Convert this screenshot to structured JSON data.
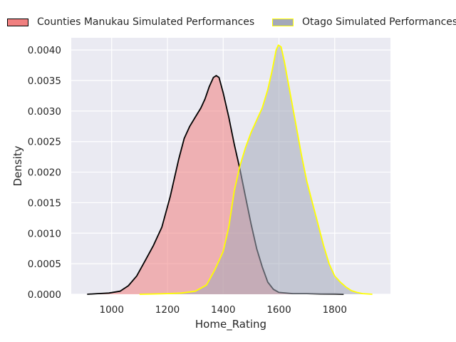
{
  "chart_data": {
    "type": "area",
    "xlabel": "Home_Rating",
    "ylabel": "Density",
    "xlim": [
      855,
      2000
    ],
    "ylim": [
      0,
      0.0042
    ],
    "grid": true,
    "legend_position": "top",
    "x_ticks": [
      "1000",
      "1200",
      "1400",
      "1600",
      "1800"
    ],
    "y_ticks": [
      "0.0000",
      "0.0005",
      "0.0010",
      "0.0015",
      "0.0020",
      "0.0025",
      "0.0030",
      "0.0035",
      "0.0040"
    ],
    "series": [
      {
        "name": "Counties Manukau Simulated Performances",
        "fill_color": "#f08080",
        "line_color": "#000000",
        "points": [
          [
            912,
            0
          ],
          [
            950,
            1e-05
          ],
          [
            990,
            2e-05
          ],
          [
            1030,
            5e-05
          ],
          [
            1060,
            0.00014
          ],
          [
            1090,
            0.0003
          ],
          [
            1120,
            0.00055
          ],
          [
            1150,
            0.0008
          ],
          [
            1180,
            0.0011
          ],
          [
            1210,
            0.0016
          ],
          [
            1240,
            0.0022
          ],
          [
            1260,
            0.00255
          ],
          [
            1280,
            0.00275
          ],
          [
            1300,
            0.0029
          ],
          [
            1320,
            0.00305
          ],
          [
            1335,
            0.0032
          ],
          [
            1350,
            0.0034
          ],
          [
            1365,
            0.00355
          ],
          [
            1375,
            0.00358
          ],
          [
            1385,
            0.00355
          ],
          [
            1400,
            0.0033
          ],
          [
            1420,
            0.0029
          ],
          [
            1440,
            0.00245
          ],
          [
            1460,
            0.00205
          ],
          [
            1480,
            0.0016
          ],
          [
            1500,
            0.00115
          ],
          [
            1520,
            0.00075
          ],
          [
            1540,
            0.00045
          ],
          [
            1560,
            0.0002
          ],
          [
            1580,
            8e-05
          ],
          [
            1600,
            3e-05
          ],
          [
            1650,
            1e-05
          ],
          [
            1700,
            1e-05
          ],
          [
            1750,
            5e-06
          ],
          [
            1800,
            3e-06
          ],
          [
            1832,
            0
          ]
        ]
      },
      {
        "name": "Otago Simulated Performances",
        "fill_color": "#a4a9b9",
        "line_color": "#ffff00",
        "points": [
          [
            1100,
            0
          ],
          [
            1150,
            5e-06
          ],
          [
            1200,
            1e-05
          ],
          [
            1250,
            2e-05
          ],
          [
            1300,
            5e-05
          ],
          [
            1340,
            0.00015
          ],
          [
            1370,
            0.0004
          ],
          [
            1400,
            0.0007
          ],
          [
            1420,
            0.0011
          ],
          [
            1440,
            0.0017
          ],
          [
            1460,
            0.0021
          ],
          [
            1480,
            0.0024
          ],
          [
            1500,
            0.00265
          ],
          [
            1520,
            0.00285
          ],
          [
            1540,
            0.00305
          ],
          [
            1560,
            0.00335
          ],
          [
            1575,
            0.00365
          ],
          [
            1590,
            0.004
          ],
          [
            1598,
            0.00408
          ],
          [
            1608,
            0.00405
          ],
          [
            1620,
            0.0038
          ],
          [
            1640,
            0.0033
          ],
          [
            1660,
            0.0028
          ],
          [
            1680,
            0.0023
          ],
          [
            1700,
            0.00185
          ],
          [
            1720,
            0.0015
          ],
          [
            1740,
            0.00115
          ],
          [
            1760,
            0.0008
          ],
          [
            1780,
            0.0005
          ],
          [
            1800,
            0.0003
          ],
          [
            1820,
            0.0002
          ],
          [
            1840,
            0.00012
          ],
          [
            1860,
            6e-05
          ],
          [
            1880,
            3e-05
          ],
          [
            1900,
            1e-05
          ],
          [
            1935,
            0
          ]
        ]
      }
    ]
  }
}
